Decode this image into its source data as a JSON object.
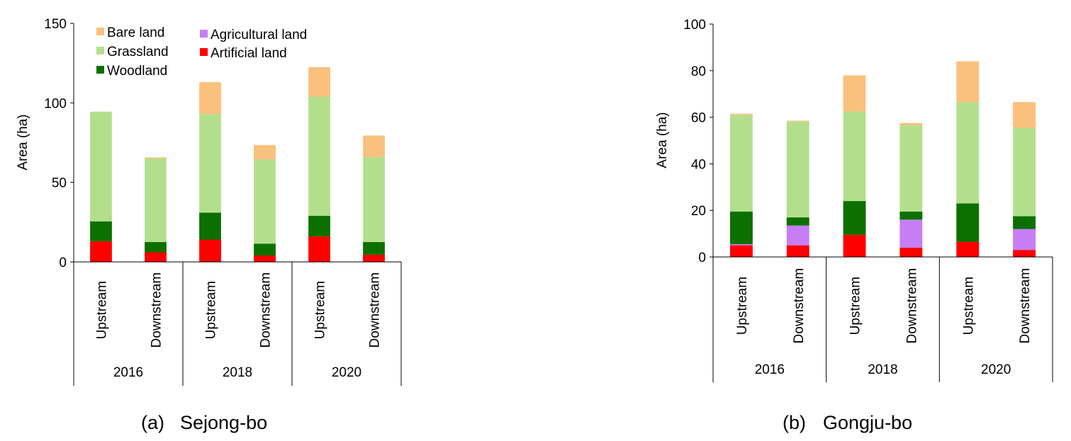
{
  "colors": {
    "bare_land": "#fac07d",
    "grassland": "#b3df8d",
    "woodland": "#0c7000",
    "agricultural_land": "#c77ef5",
    "artificial_land": "#fe0000",
    "axis": "#000000"
  },
  "chart_data": [
    {
      "type": "bar",
      "stacked": true,
      "caption_label": "(a)",
      "caption_name": "Sejong-bo",
      "ylabel": "Area (ha)",
      "ylim": [
        0,
        150
      ],
      "yticks": [
        "0",
        "50",
        "100",
        "150"
      ],
      "categories": [
        "Upstream",
        "Downstream",
        "Upstream",
        "Downstream",
        "Upstream",
        "Downstream"
      ],
      "groups": [
        "2016",
        "2018",
        "2020"
      ],
      "legend": [
        "Bare land",
        "Agricultural land",
        "Grassland",
        "Artificial land",
        "Woodland"
      ],
      "series": [
        {
          "name": "Artificial land",
          "key": "artificial_land",
          "values": [
            13,
            6,
            14,
            4,
            16,
            4.5
          ]
        },
        {
          "name": "Agricultural land",
          "key": "agricultural_land",
          "values": [
            0,
            0,
            0,
            0,
            0,
            0
          ]
        },
        {
          "name": "Woodland",
          "key": "woodland",
          "values": [
            12.5,
            6.5,
            17,
            7.5,
            13,
            8
          ]
        },
        {
          "name": "Grassland",
          "key": "grassland",
          "values": [
            69,
            52.5,
            62,
            53,
            75,
            53.5
          ]
        },
        {
          "name": "Bare land",
          "key": "bare_land",
          "values": [
            0,
            0.7,
            20,
            9,
            18.5,
            13.5
          ]
        }
      ]
    },
    {
      "type": "bar",
      "stacked": true,
      "caption_label": "(b)",
      "caption_name": "Gongju-bo",
      "ylabel": "Area (ha)",
      "ylim": [
        0,
        100
      ],
      "yticks": [
        "0",
        "20",
        "40",
        "60",
        "80",
        "100"
      ],
      "categories": [
        "Upstream",
        "Downstream",
        "Upstream",
        "Downstream",
        "Upstream",
        "Downstream"
      ],
      "groups": [
        "2016",
        "2018",
        "2020"
      ],
      "series": [
        {
          "name": "Artificial land",
          "key": "artificial_land",
          "values": [
            5,
            5,
            9.5,
            4,
            6.5,
            3
          ]
        },
        {
          "name": "Agricultural land",
          "key": "agricultural_land",
          "values": [
            0.5,
            8.5,
            0,
            12,
            0,
            9
          ]
        },
        {
          "name": "Woodland",
          "key": "woodland",
          "values": [
            14,
            3.5,
            14.5,
            3.5,
            16.5,
            5.5
          ]
        },
        {
          "name": "Grassland",
          "key": "grassland",
          "values": [
            41.5,
            41,
            38.5,
            37,
            43.5,
            38
          ]
        },
        {
          "name": "Bare land",
          "key": "bare_land",
          "values": [
            0.5,
            0.5,
            15.5,
            1,
            17.5,
            11
          ]
        }
      ]
    }
  ]
}
